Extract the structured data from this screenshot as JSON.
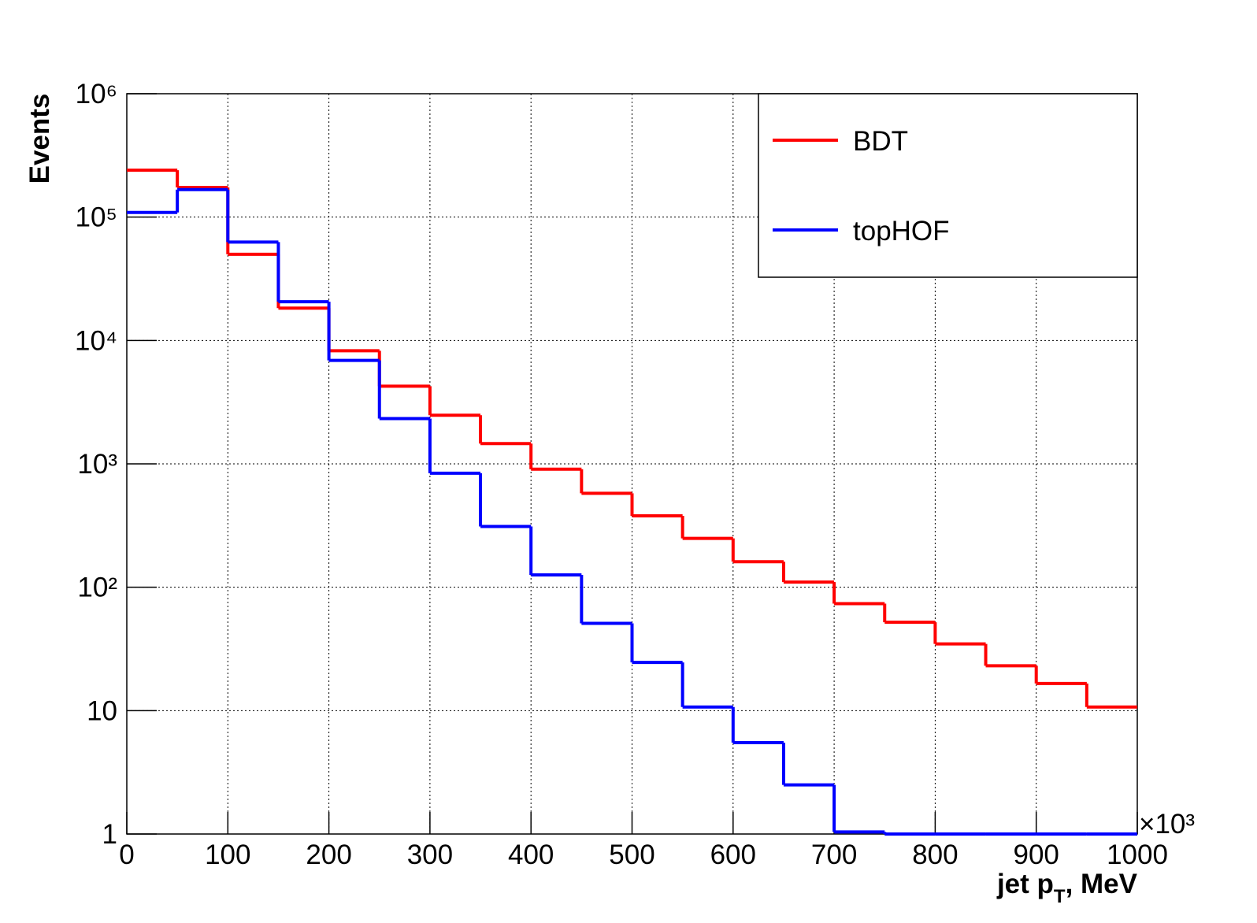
{
  "chart_data": {
    "type": "histogram",
    "xlabel": [
      "jet p",
      "T",
      ", MeV"
    ],
    "ylabel": "Events",
    "x_multiplier": "×10³",
    "bins": [
      0,
      50,
      100,
      150,
      200,
      250,
      300,
      350,
      400,
      450,
      500,
      550,
      600,
      650,
      700,
      750,
      800,
      850,
      900,
      950,
      1000
    ],
    "series": [
      {
        "name": "BDT",
        "color": "#ff0000",
        "values": [
          240000,
          174000,
          50000,
          18300,
          8250,
          4260,
          2480,
          1460,
          905,
          577,
          379,
          249,
          161,
          110,
          73.6,
          52,
          34.7,
          23.1,
          16.6,
          10.7
        ]
      },
      {
        "name": "topHOF",
        "color": "#0000ff",
        "values": [
          109000,
          167000,
          62800,
          20600,
          6890,
          2330,
          840,
          311,
          126,
          51,
          24.6,
          10.7,
          5.5,
          2.5,
          1.04,
          1,
          1,
          1,
          1,
          1
        ]
      }
    ],
    "xlim": [
      0,
      1000
    ],
    "xticks": [
      0,
      100,
      200,
      300,
      400,
      500,
      600,
      700,
      800,
      900,
      1000
    ],
    "ylim": [
      1,
      1000000
    ],
    "yticks": [
      1,
      10,
      {
        "value": 100,
        "label": "10²"
      },
      {
        "value": 1000,
        "label": "10³"
      },
      {
        "value": 10000,
        "label": "10⁴"
      },
      {
        "value": 100000,
        "label": "10⁵"
      },
      {
        "value": 1000000,
        "label": "10⁶"
      }
    ],
    "log_y": true,
    "grid": true,
    "legend": "top-right"
  }
}
